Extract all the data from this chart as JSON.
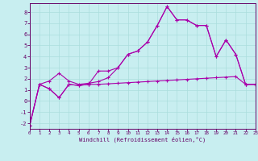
{
  "xlabel": "Windchill (Refroidissement éolien,°C)",
  "xlim": [
    0,
    23
  ],
  "ylim": [
    -2.5,
    8.8
  ],
  "xticks": [
    0,
    1,
    2,
    3,
    4,
    5,
    6,
    7,
    8,
    9,
    10,
    11,
    12,
    13,
    14,
    15,
    16,
    17,
    18,
    19,
    20,
    21,
    22,
    23
  ],
  "yticks": [
    -2,
    -1,
    0,
    1,
    2,
    3,
    4,
    5,
    6,
    7,
    8
  ],
  "bg_color": "#c8eef0",
  "line_color": "#aa00aa",
  "x": [
    0,
    1,
    2,
    3,
    4,
    5,
    6,
    7,
    8,
    9,
    10,
    11,
    12,
    13,
    14,
    15,
    16,
    17,
    18,
    19,
    20,
    21,
    22,
    23
  ],
  "line_bottom": [
    -2.2,
    1.5,
    1.1,
    0.3,
    1.5,
    1.4,
    1.5,
    1.5,
    1.55,
    1.6,
    1.65,
    1.7,
    1.75,
    1.8,
    1.85,
    1.9,
    1.95,
    2.0,
    2.05,
    2.1,
    2.15,
    2.2,
    1.5,
    1.5
  ],
  "line_top": [
    -2.2,
    1.5,
    1.8,
    2.5,
    1.8,
    1.5,
    1.6,
    1.75,
    2.1,
    3.0,
    4.2,
    4.5,
    5.3,
    6.8,
    8.5,
    7.3,
    7.3,
    6.8,
    6.8,
    4.0,
    5.5,
    4.2,
    1.5,
    1.5
  ],
  "line_mid": [
    -2.2,
    1.5,
    1.1,
    0.3,
    1.5,
    1.4,
    1.5,
    2.7,
    2.7,
    3.0,
    4.2,
    4.5,
    5.3,
    6.8,
    8.5,
    7.3,
    7.3,
    6.8,
    6.8,
    4.0,
    5.5,
    4.2,
    1.5,
    1.5
  ]
}
